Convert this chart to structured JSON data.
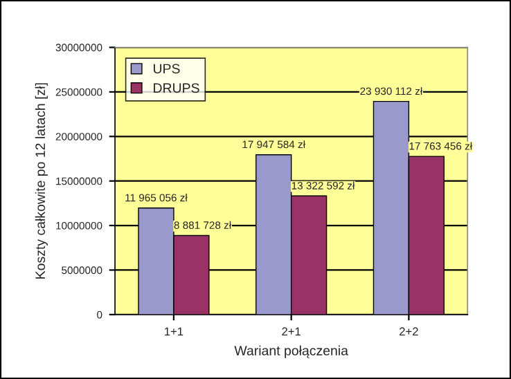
{
  "chart_data": {
    "type": "bar",
    "xlabel": "Wariant połączenia",
    "ylabel": "Koszty całkowite po 12 latach [zł]",
    "categories": [
      "1+1",
      "2+1",
      "2+2"
    ],
    "series": [
      {
        "name": "UPS",
        "color": "#9999cc",
        "values": [
          11965056,
          17947584,
          23930112
        ],
        "value_labels": [
          "11 965 056 zł",
          "17 947 584 zł",
          "23 930 112 zł"
        ]
      },
      {
        "name": "DRUPS",
        "color": "#993366",
        "values": [
          8881728,
          13322592,
          17763456
        ],
        "value_labels": [
          "8 881 728 zł",
          "13 322 592 zł",
          "17 763 456 zł"
        ]
      }
    ],
    "ylim": [
      0,
      30000000
    ],
    "yticks": [
      0,
      5000000,
      10000000,
      15000000,
      20000000,
      25000000,
      30000000
    ],
    "grid": "y",
    "legend": "top left"
  }
}
